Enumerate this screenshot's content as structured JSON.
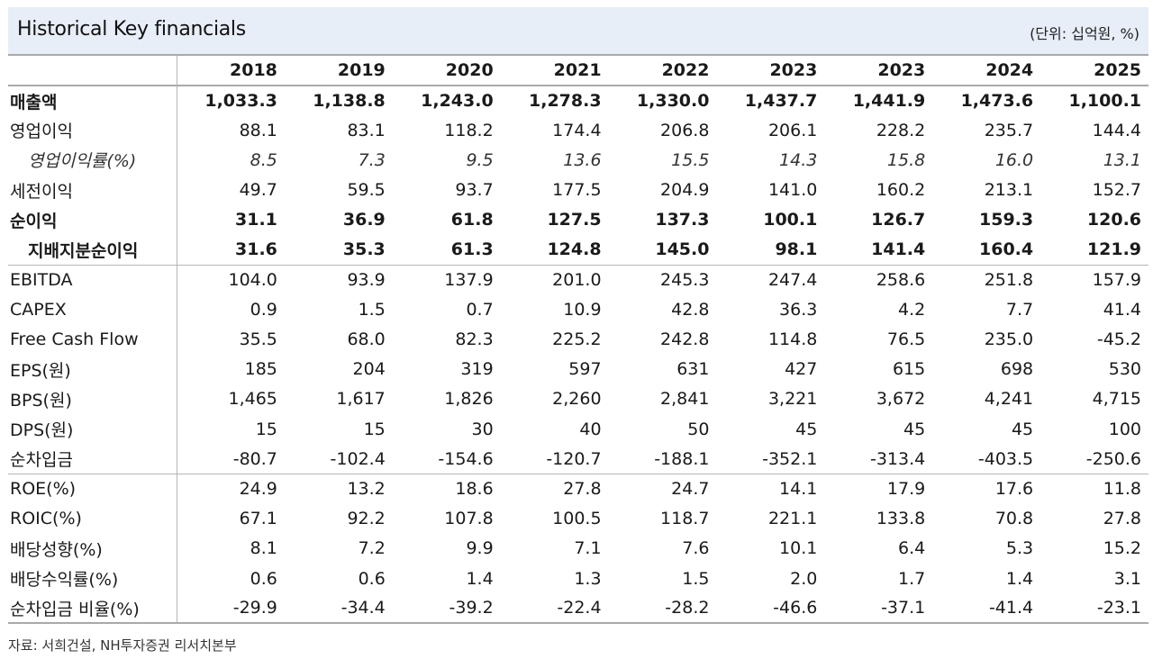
{
  "header": {
    "title": "Historical Key financials",
    "unit": "(단위:  십억원, %)"
  },
  "columns": [
    "2018",
    "2019",
    "2020",
    "2021",
    "2022",
    "2023",
    "2023",
    "2024",
    "2025"
  ],
  "rows": [
    {
      "label": "매출액",
      "values": [
        "1,033.3",
        "1,138.8",
        "1,243.0",
        "1,278.3",
        "1,330.0",
        "1,437.7",
        "1,441.9",
        "1,473.6",
        "1,100.1"
      ]
    },
    {
      "label": "영업이익",
      "values": [
        "88.1",
        "83.1",
        "118.2",
        "174.4",
        "206.8",
        "206.1",
        "228.2",
        "235.7",
        "144.4"
      ]
    },
    {
      "label": "영업이익률(%)",
      "values": [
        "8.5",
        "7.3",
        "9.5",
        "13.6",
        "15.5",
        "14.3",
        "15.8",
        "16.0",
        "13.1"
      ]
    },
    {
      "label": "세전이익",
      "values": [
        "49.7",
        "59.5",
        "93.7",
        "177.5",
        "204.9",
        "141.0",
        "160.2",
        "213.1",
        "152.7"
      ]
    },
    {
      "label": "순이익",
      "values": [
        "31.1",
        "36.9",
        "61.8",
        "127.5",
        "137.3",
        "100.1",
        "126.7",
        "159.3",
        "120.6"
      ]
    },
    {
      "label": "지배지분순이익",
      "values": [
        "31.6",
        "35.3",
        "61.3",
        "124.8",
        "145.0",
        "98.1",
        "141.4",
        "160.4",
        "121.9"
      ]
    },
    {
      "label": "EBITDA",
      "values": [
        "104.0",
        "93.9",
        "137.9",
        "201.0",
        "245.3",
        "247.4",
        "258.6",
        "251.8",
        "157.9"
      ]
    },
    {
      "label": "CAPEX",
      "values": [
        "0.9",
        "1.5",
        "0.7",
        "10.9",
        "42.8",
        "36.3",
        "4.2",
        "7.7",
        "41.4"
      ]
    },
    {
      "label": "Free Cash Flow",
      "values": [
        "35.5",
        "68.0",
        "82.3",
        "225.2",
        "242.8",
        "114.8",
        "76.5",
        "235.0",
        "-45.2"
      ]
    },
    {
      "label": "EPS(원)",
      "values": [
        "185",
        "204",
        "319",
        "597",
        "631",
        "427",
        "615",
        "698",
        "530"
      ]
    },
    {
      "label": "BPS(원)",
      "values": [
        "1,465",
        "1,617",
        "1,826",
        "2,260",
        "2,841",
        "3,221",
        "3,672",
        "4,241",
        "4,715"
      ]
    },
    {
      "label": "DPS(원)",
      "values": [
        "15",
        "15",
        "30",
        "40",
        "50",
        "45",
        "45",
        "45",
        "100"
      ]
    },
    {
      "label": "순차입금",
      "values": [
        "-80.7",
        "-102.4",
        "-154.6",
        "-120.7",
        "-188.1",
        "-352.1",
        "-313.4",
        "-403.5",
        "-250.6"
      ]
    },
    {
      "label": "ROE(%)",
      "values": [
        "24.9",
        "13.2",
        "18.6",
        "27.8",
        "24.7",
        "14.1",
        "17.9",
        "17.6",
        "11.8"
      ]
    },
    {
      "label": "ROIC(%)",
      "values": [
        "67.1",
        "92.2",
        "107.8",
        "100.5",
        "118.7",
        "221.1",
        "133.8",
        "70.8",
        "27.8"
      ]
    },
    {
      "label": "배당성향(%)",
      "values": [
        "8.1",
        "7.2",
        "9.9",
        "7.1",
        "7.6",
        "10.1",
        "6.4",
        "5.3",
        "15.2"
      ]
    },
    {
      "label": "배당수익률(%)",
      "values": [
        "0.6",
        "0.6",
        "1.4",
        "1.3",
        "1.5",
        "2.0",
        "1.7",
        "1.4",
        "3.1"
      ]
    },
    {
      "label": "순차입금 비율(%)",
      "values": [
        "-29.9",
        "-34.4",
        "-39.2",
        "-22.4",
        "-28.2",
        "-46.6",
        "-37.1",
        "-41.4",
        "-23.1"
      ]
    }
  ],
  "source": "자료:  서희건설, NH투자증권 리서치본부"
}
